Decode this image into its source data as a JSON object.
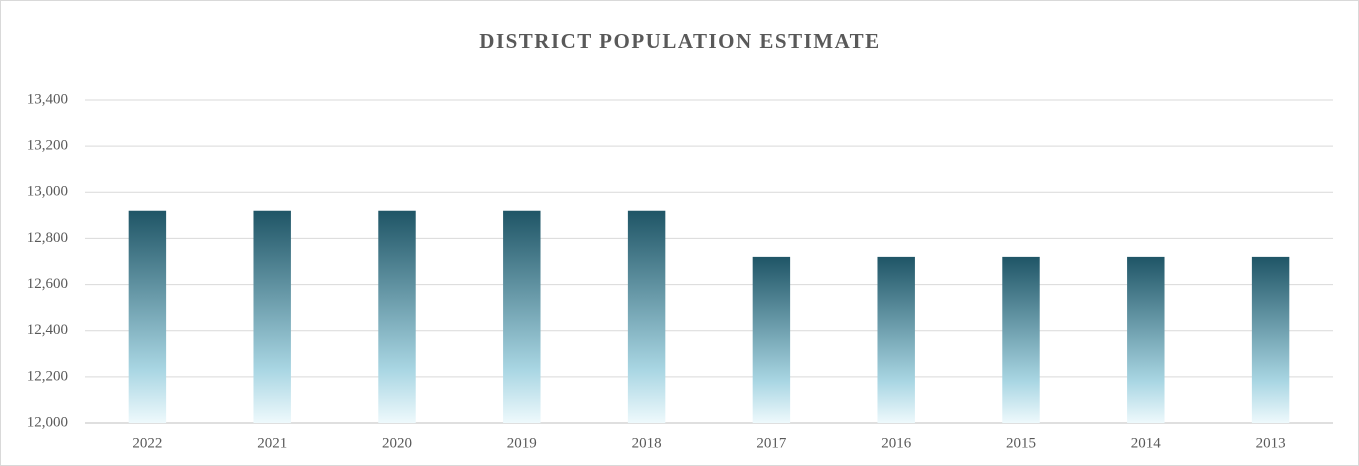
{
  "chart_data": {
    "type": "bar",
    "title": "DISTRICT POPULATION ESTIMATE",
    "categories": [
      "2022",
      "2021",
      "2020",
      "2019",
      "2018",
      "2017",
      "2016",
      "2015",
      "2014",
      "2013"
    ],
    "values": [
      12920,
      12920,
      12920,
      12920,
      12920,
      12720,
      12720,
      12720,
      12720,
      12720
    ],
    "color": "#1f5566",
    "ylim": [
      12000,
      13400
    ],
    "yticks": [
      {
        "value": 12000,
        "label": "12,000"
      },
      {
        "value": 12200,
        "label": "12,200"
      },
      {
        "value": 12400,
        "label": "12,400"
      },
      {
        "value": 12600,
        "label": "12,600"
      },
      {
        "value": 12800,
        "label": "12,800"
      },
      {
        "value": 13000,
        "label": "13,000"
      },
      {
        "value": 13200,
        "label": "13,200"
      },
      {
        "value": 13400,
        "label": "13,400"
      }
    ],
    "grid": true
  }
}
